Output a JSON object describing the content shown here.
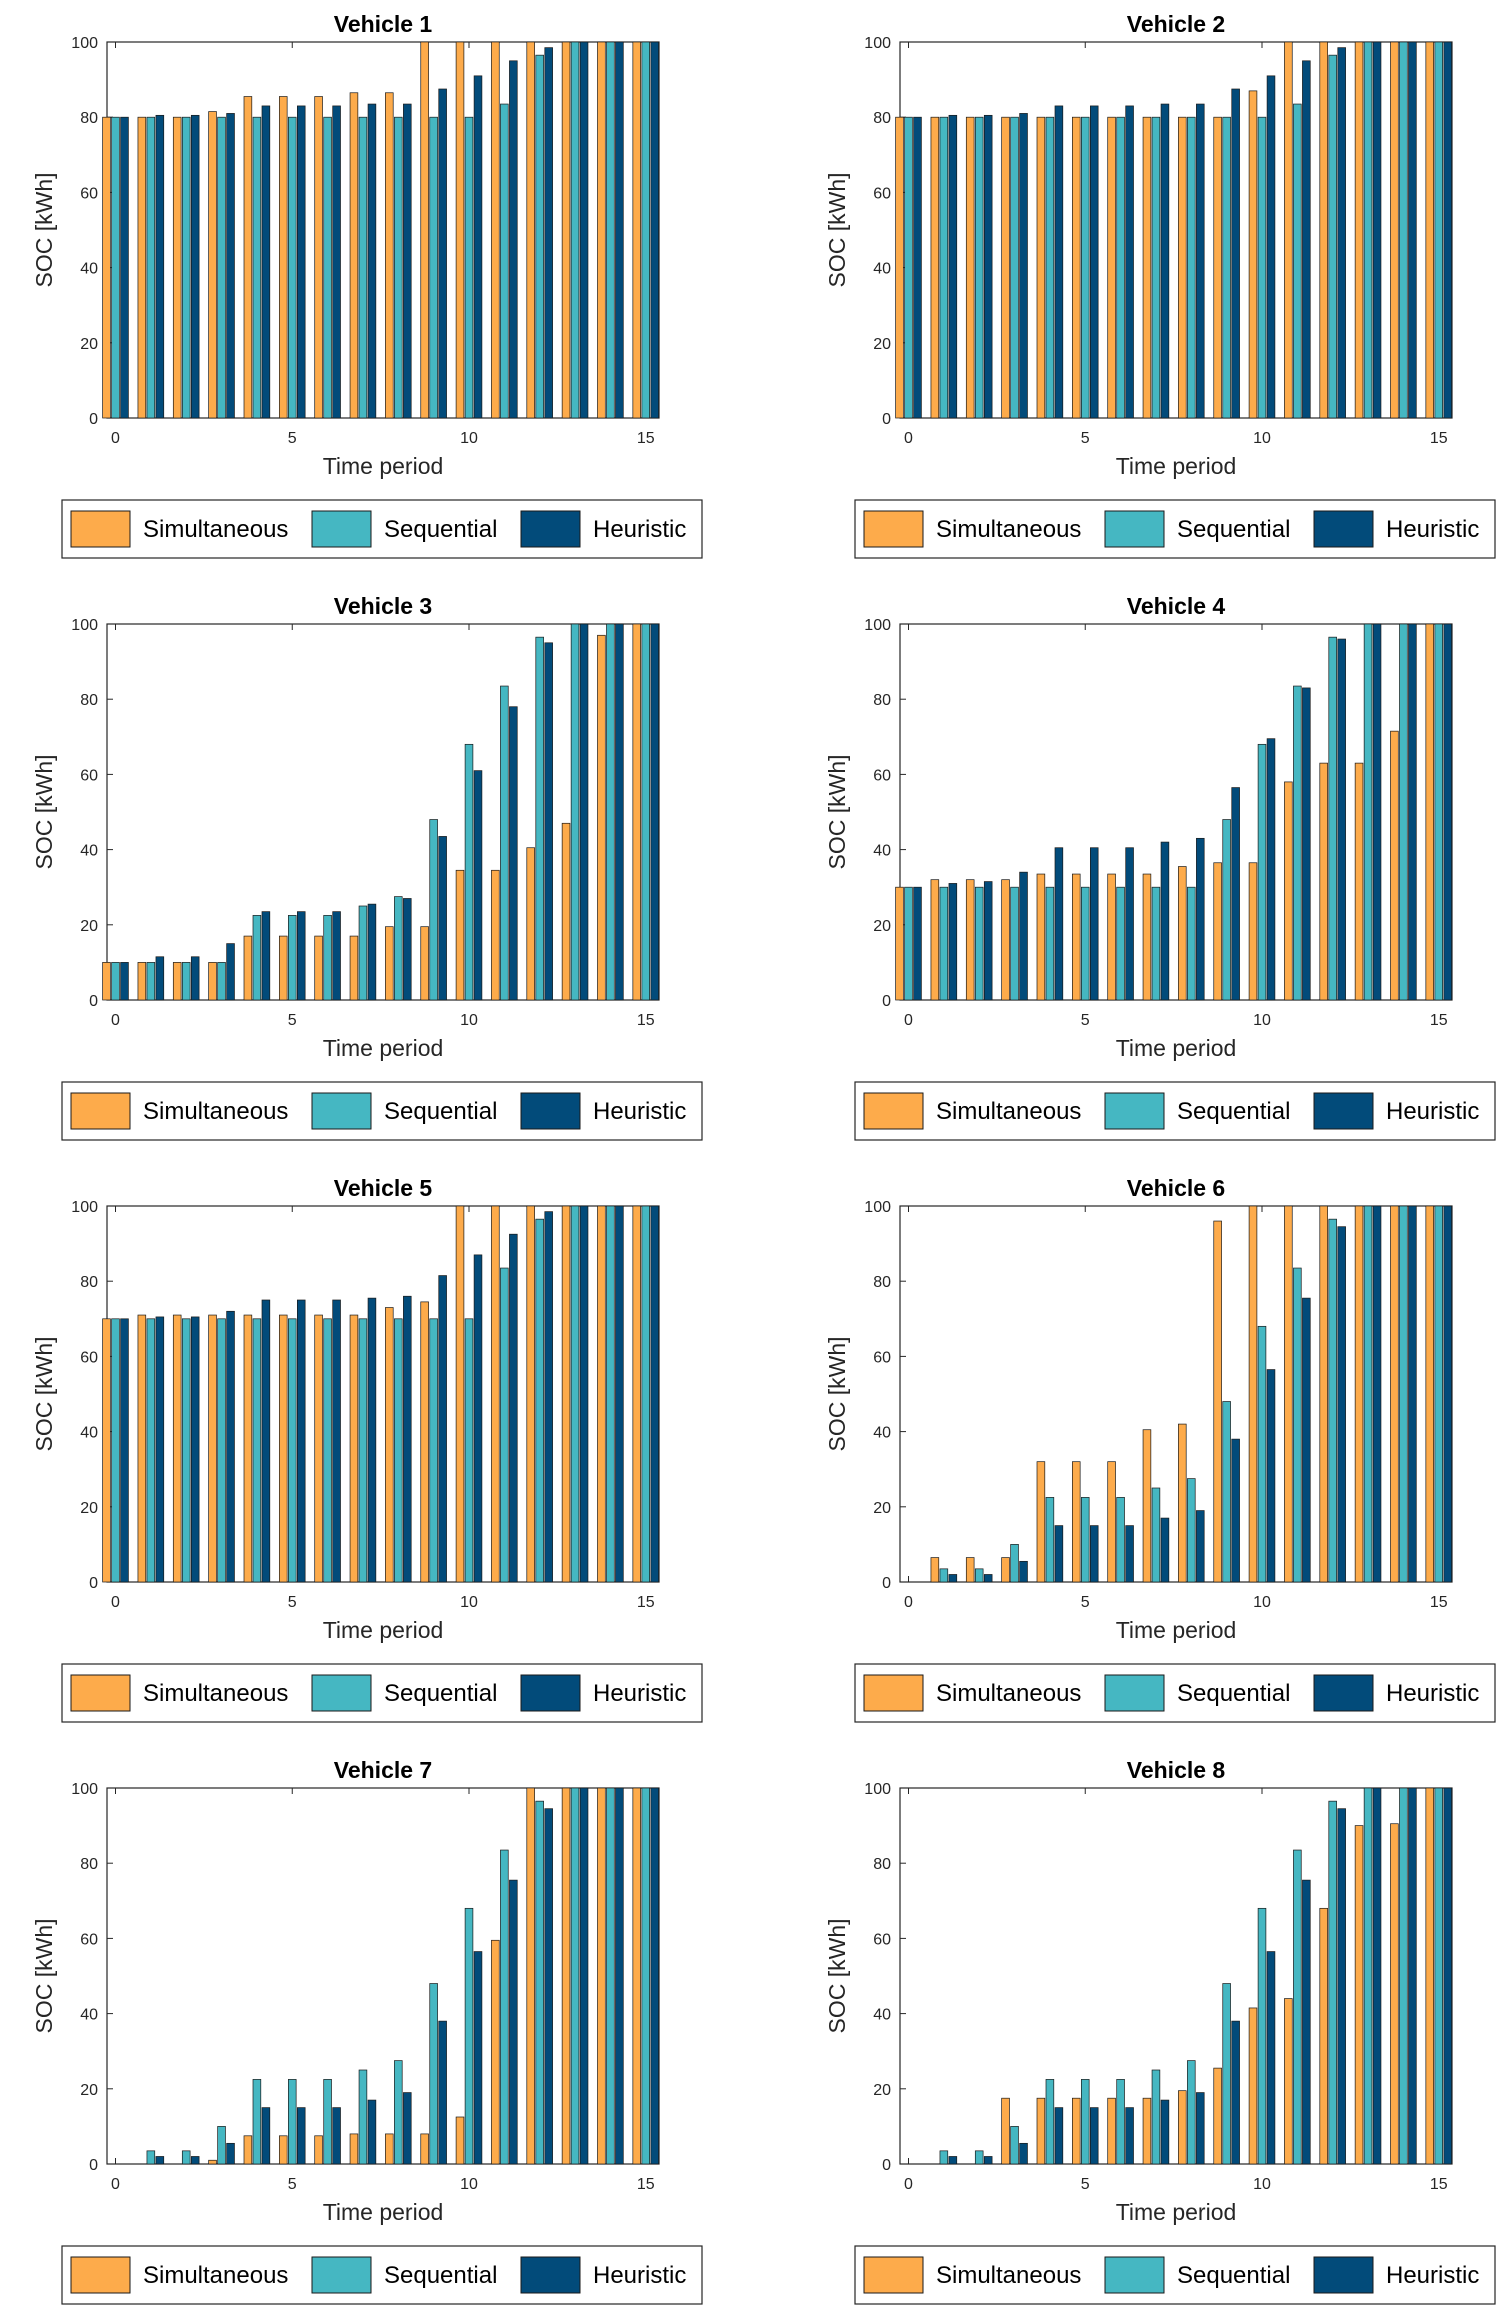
{
  "chart_data": [
    {
      "type": "bar",
      "title": "Vehicle 1",
      "xlabel": "Time period",
      "ylabel": "SOC [kWh]",
      "ylim": [
        0,
        100
      ],
      "xticks": [
        "0",
        "5",
        "10",
        "15"
      ],
      "yticks": [
        "0",
        "20",
        "40",
        "60",
        "80",
        "100"
      ],
      "categories": [
        0,
        1,
        2,
        3,
        4,
        5,
        6,
        7,
        8,
        9,
        10,
        11,
        12,
        13,
        14,
        15
      ],
      "series": [
        {
          "name": "Simultaneous",
          "values": [
            80,
            80,
            80,
            81.5,
            85.5,
            85.5,
            85.5,
            86.5,
            86.5,
            100,
            100,
            100,
            100,
            100,
            100,
            100
          ]
        },
        {
          "name": "Sequential",
          "values": [
            80,
            80,
            80,
            80,
            80,
            80,
            80,
            80,
            80,
            80,
            80,
            83.5,
            96.5,
            100,
            100,
            100
          ]
        },
        {
          "name": "Heuristic",
          "values": [
            80,
            80.5,
            80.5,
            81,
            83,
            83,
            83,
            83.5,
            83.5,
            87.5,
            91,
            95,
            98.5,
            100,
            100,
            100
          ]
        }
      ]
    },
    {
      "type": "bar",
      "title": "Vehicle 2",
      "xlabel": "Time period",
      "ylabel": "SOC [kWh]",
      "ylim": [
        0,
        100
      ],
      "xticks": [
        "0",
        "5",
        "10",
        "15"
      ],
      "yticks": [
        "0",
        "20",
        "40",
        "60",
        "80",
        "100"
      ],
      "categories": [
        0,
        1,
        2,
        3,
        4,
        5,
        6,
        7,
        8,
        9,
        10,
        11,
        12,
        13,
        14,
        15
      ],
      "series": [
        {
          "name": "Simultaneous",
          "values": [
            80,
            80,
            80,
            80,
            80,
            80,
            80,
            80,
            80,
            80,
            87,
            100,
            100,
            100,
            100,
            100
          ]
        },
        {
          "name": "Sequential",
          "values": [
            80,
            80,
            80,
            80,
            80,
            80,
            80,
            80,
            80,
            80,
            80,
            83.5,
            96.5,
            100,
            100,
            100
          ]
        },
        {
          "name": "Heuristic",
          "values": [
            80,
            80.5,
            80.5,
            81,
            83,
            83,
            83,
            83.5,
            83.5,
            87.5,
            91,
            95,
            98.5,
            100,
            100,
            100
          ]
        }
      ]
    },
    {
      "type": "bar",
      "title": "Vehicle 3",
      "xlabel": "Time period",
      "ylabel": "SOC [kWh]",
      "ylim": [
        0,
        100
      ],
      "xticks": [
        "0",
        "5",
        "10",
        "15"
      ],
      "yticks": [
        "0",
        "20",
        "40",
        "60",
        "80",
        "100"
      ],
      "categories": [
        0,
        1,
        2,
        3,
        4,
        5,
        6,
        7,
        8,
        9,
        10,
        11,
        12,
        13,
        14,
        15
      ],
      "series": [
        {
          "name": "Simultaneous",
          "values": [
            10,
            10,
            10,
            10,
            17,
            17,
            17,
            17,
            19.5,
            19.5,
            34.5,
            34.5,
            40.5,
            47,
            97,
            100
          ]
        },
        {
          "name": "Sequential",
          "values": [
            10,
            10,
            10,
            10,
            22.5,
            22.5,
            22.5,
            25,
            27.5,
            48,
            68,
            83.5,
            96.5,
            100,
            100,
            100
          ]
        },
        {
          "name": "Heuristic",
          "values": [
            10,
            11.5,
            11.5,
            15,
            23.5,
            23.5,
            23.5,
            25.5,
            27,
            43.5,
            61,
            78,
            95,
            100,
            100,
            100
          ]
        }
      ]
    },
    {
      "type": "bar",
      "title": "Vehicle 4",
      "xlabel": "Time period",
      "ylabel": "SOC [kWh]",
      "ylim": [
        0,
        100
      ],
      "xticks": [
        "0",
        "5",
        "10",
        "15"
      ],
      "yticks": [
        "0",
        "20",
        "40",
        "60",
        "80",
        "100"
      ],
      "categories": [
        0,
        1,
        2,
        3,
        4,
        5,
        6,
        7,
        8,
        9,
        10,
        11,
        12,
        13,
        14,
        15
      ],
      "series": [
        {
          "name": "Simultaneous",
          "values": [
            30,
            32,
            32,
            32,
            33.5,
            33.5,
            33.5,
            33.5,
            35.5,
            36.5,
            36.5,
            58,
            63,
            63,
            71.5,
            100
          ]
        },
        {
          "name": "Sequential",
          "values": [
            30,
            30,
            30,
            30,
            30,
            30,
            30,
            30,
            30,
            48,
            68,
            83.5,
            96.5,
            100,
            100,
            100
          ]
        },
        {
          "name": "Heuristic",
          "values": [
            30,
            31,
            31.5,
            34,
            40.5,
            40.5,
            40.5,
            42,
            43,
            56.5,
            69.5,
            83,
            96,
            100,
            100,
            100
          ]
        }
      ]
    },
    {
      "type": "bar",
      "title": "Vehicle 5",
      "xlabel": "Time period",
      "ylabel": "SOC [kWh]",
      "ylim": [
        0,
        100
      ],
      "xticks": [
        "0",
        "5",
        "10",
        "15"
      ],
      "yticks": [
        "0",
        "20",
        "40",
        "60",
        "80",
        "100"
      ],
      "categories": [
        0,
        1,
        2,
        3,
        4,
        5,
        6,
        7,
        8,
        9,
        10,
        11,
        12,
        13,
        14,
        15
      ],
      "series": [
        {
          "name": "Simultaneous",
          "values": [
            70,
            71,
            71,
            71,
            71,
            71,
            71,
            71,
            73,
            74.5,
            100,
            100,
            100,
            100,
            100,
            100
          ]
        },
        {
          "name": "Sequential",
          "values": [
            70,
            70,
            70,
            70,
            70,
            70,
            70,
            70,
            70,
            70,
            70,
            83.5,
            96.5,
            100,
            100,
            100
          ]
        },
        {
          "name": "Heuristic",
          "values": [
            70,
            70.5,
            70.5,
            72,
            75,
            75,
            75,
            75.5,
            76,
            81.5,
            87,
            92.5,
            98.5,
            100,
            100,
            100
          ]
        }
      ]
    },
    {
      "type": "bar",
      "title": "Vehicle 6",
      "xlabel": "Time period",
      "ylabel": "SOC [kWh]",
      "ylim": [
        0,
        100
      ],
      "xticks": [
        "0",
        "5",
        "10",
        "15"
      ],
      "yticks": [
        "0",
        "20",
        "40",
        "60",
        "80",
        "100"
      ],
      "categories": [
        0,
        1,
        2,
        3,
        4,
        5,
        6,
        7,
        8,
        9,
        10,
        11,
        12,
        13,
        14,
        15
      ],
      "series": [
        {
          "name": "Simultaneous",
          "values": [
            0,
            6.5,
            6.5,
            6.5,
            32,
            32,
            32,
            40.5,
            42,
            96,
            100,
            100,
            100,
            100,
            100,
            100
          ]
        },
        {
          "name": "Sequential",
          "values": [
            0,
            3.5,
            3.5,
            10,
            22.5,
            22.5,
            22.5,
            25,
            27.5,
            48,
            68,
            83.5,
            96.5,
            100,
            100,
            100
          ]
        },
        {
          "name": "Heuristic",
          "values": [
            0,
            2,
            2,
            5.5,
            15,
            15,
            15,
            17,
            19,
            38,
            56.5,
            75.5,
            94.5,
            100,
            100,
            100
          ]
        }
      ]
    },
    {
      "type": "bar",
      "title": "Vehicle 7",
      "xlabel": "Time period",
      "ylabel": "SOC [kWh]",
      "ylim": [
        0,
        100
      ],
      "xticks": [
        "0",
        "5",
        "10",
        "15"
      ],
      "yticks": [
        "0",
        "20",
        "40",
        "60",
        "80",
        "100"
      ],
      "categories": [
        0,
        1,
        2,
        3,
        4,
        5,
        6,
        7,
        8,
        9,
        10,
        11,
        12,
        13,
        14,
        15
      ],
      "series": [
        {
          "name": "Simultaneous",
          "values": [
            0,
            0,
            0,
            1,
            7.5,
            7.5,
            7.5,
            8,
            8,
            8,
            12.5,
            59.5,
            100,
            100,
            100,
            100
          ]
        },
        {
          "name": "Sequential",
          "values": [
            0,
            3.5,
            3.5,
            10,
            22.5,
            22.5,
            22.5,
            25,
            27.5,
            48,
            68,
            83.5,
            96.5,
            100,
            100,
            100
          ]
        },
        {
          "name": "Heuristic",
          "values": [
            0,
            2,
            2,
            5.5,
            15,
            15,
            15,
            17,
            19,
            38,
            56.5,
            75.5,
            94.5,
            100,
            100,
            100
          ]
        }
      ]
    },
    {
      "type": "bar",
      "title": "Vehicle 8",
      "xlabel": "Time period",
      "ylabel": "SOC [kWh]",
      "ylim": [
        0,
        100
      ],
      "xticks": [
        "0",
        "5",
        "10",
        "15"
      ],
      "yticks": [
        "0",
        "20",
        "40",
        "60",
        "80",
        "100"
      ],
      "categories": [
        0,
        1,
        2,
        3,
        4,
        5,
        6,
        7,
        8,
        9,
        10,
        11,
        12,
        13,
        14,
        15
      ],
      "series": [
        {
          "name": "Simultaneous",
          "values": [
            0,
            0,
            0,
            17.5,
            17.5,
            17.5,
            17.5,
            17.5,
            19.5,
            25.5,
            41.5,
            44,
            68,
            90,
            90.5,
            100
          ]
        },
        {
          "name": "Sequential",
          "values": [
            0,
            3.5,
            3.5,
            10,
            22.5,
            22.5,
            22.5,
            25,
            27.5,
            48,
            68,
            83.5,
            96.5,
            100,
            100,
            100
          ]
        },
        {
          "name": "Heuristic",
          "values": [
            0,
            2,
            2,
            5.5,
            15,
            15,
            15,
            17,
            19,
            38,
            56.5,
            75.5,
            94.5,
            100,
            100,
            100
          ]
        }
      ]
    }
  ],
  "legend": {
    "labels": [
      "Simultaneous",
      "Sequential",
      "Heuristic"
    ],
    "colors": [
      "#fdab4b",
      "#45b7c2",
      "#024b7a"
    ]
  }
}
